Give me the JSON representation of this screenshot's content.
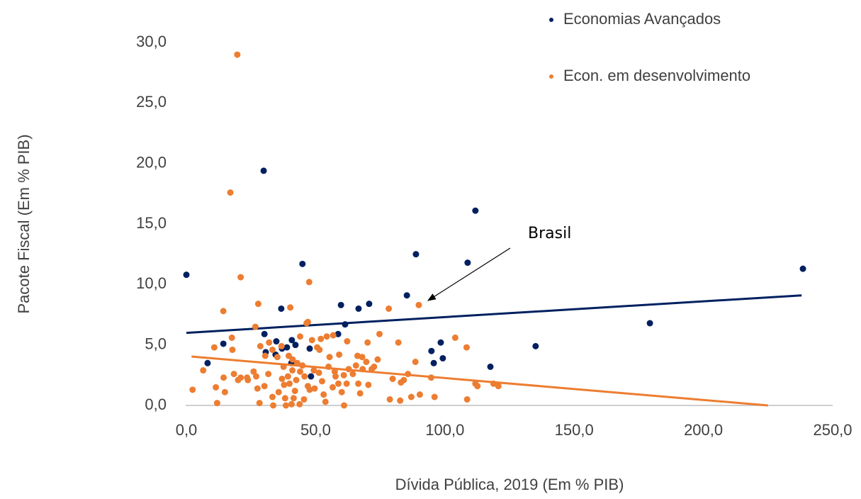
{
  "chart_data": {
    "type": "scatter",
    "x_label": "Dívida Pública, 2019 (Em % PIB)",
    "y_label": "Pacote Fiscal (Em % PIB)",
    "xlim": [
      0,
      250
    ],
    "ylim": [
      0,
      30
    ],
    "xticks": [
      {
        "value": 0,
        "label": "0,0"
      },
      {
        "value": 50,
        "label": "50,0"
      },
      {
        "value": 100,
        "label": "100,0"
      },
      {
        "value": 150,
        "label": "150,0"
      },
      {
        "value": 200,
        "label": "200,0"
      },
      {
        "value": 250,
        "label": "250,0"
      }
    ],
    "yticks": [
      {
        "value": 0,
        "label": "0,0"
      },
      {
        "value": 5,
        "label": "5,0"
      },
      {
        "value": 10,
        "label": "10,0"
      },
      {
        "value": 15,
        "label": "15,0"
      },
      {
        "value": 20,
        "label": "20,0"
      },
      {
        "value": 25,
        "label": "25,0"
      },
      {
        "value": 30,
        "label": "30,0"
      }
    ],
    "legend": "upper right",
    "annotation": "Brasil",
    "series": [
      {
        "name": "Economias Avançados",
        "color": "#002060",
        "x": [
          0,
          8.2,
          14.3,
          29.9,
          30.2,
          30.7,
          34.5,
          34.8,
          37.0,
          36.7,
          38.9,
          40.6,
          40.8,
          42.2,
          44.9,
          47.7,
          48.2,
          58.7,
          59.8,
          61.4,
          66.6,
          70.7,
          85.3,
          88.8,
          94.8,
          95.7,
          98.4,
          99.2,
          108.8,
          111.8,
          117.6,
          135.1,
          179.3,
          238.5
        ],
        "y": [
          10.8,
          3.5,
          5.1,
          19.4,
          5.9,
          4.4,
          4.2,
          5.3,
          4.7,
          8.0,
          4.8,
          3.5,
          5.4,
          5.0,
          11.7,
          4.7,
          2.4,
          5.9,
          8.3,
          6.7,
          8.0,
          8.4,
          9.1,
          12.5,
          4.5,
          3.5,
          5.2,
          3.9,
          11.8,
          16.1,
          3.2,
          4.9,
          6.8,
          11.3
        ],
        "trendline": {
          "x": [
            0,
            238
          ],
          "y": [
            6.0,
            9.1
          ]
        }
      },
      {
        "name": "Econ. em desenvolvimento",
        "color": "#ED7D31",
        "x": [
          19.7,
          17.0,
          21.0,
          47.5,
          27.8,
          14.3,
          40.2,
          89.9,
          78.3,
          26.7,
          17.6,
          17.8,
          46.5,
          47.0,
          74.7,
          82.0,
          104,
          108.4,
          70.1,
          68,
          66.2,
          54.3,
          56.8,
          59.1,
          62.2,
          50.6,
          52,
          44,
          39.6,
          41,
          37.6,
          32,
          28.6,
          30.5,
          26,
          27,
          23.5,
          20,
          10.8,
          6.5,
          2.4,
          11.4,
          11.9,
          14.9,
          14.4,
          18.4,
          27.5,
          28.3,
          30.2,
          31.7,
          33.3,
          33.6,
          35.7,
          37.0,
          37.8,
          38.2,
          38.5,
          39.3,
          39.9,
          40.7,
          41.5,
          42.0,
          42.5,
          43.8,
          44.9,
          45.5,
          47.0,
          47.7,
          49.3,
          49.6,
          51.3,
          52.5,
          53.1,
          53.8,
          55.0,
          56.6,
          57.4,
          58.8,
          60.1,
          61.0,
          62.0,
          62.8,
          64.4,
          65.6,
          66.5,
          67.2,
          68.2,
          69.6,
          70.4,
          71.7,
          72.6,
          74.0,
          78.7,
          79.8,
          82.7,
          83.0,
          84.1,
          85.7,
          87.0,
          88.6,
          90.3,
          94.7,
          96.0,
          108.6,
          111.8,
          112.6,
          118.8,
          120.7,
          23.8,
          21.0,
          45.7,
          48.6,
          51.5,
          33.3,
          35.2,
          36.8,
          41.1,
          42.9,
          44.0,
          55.4,
          60.9,
          57.7
        ],
        "y": [
          29.0,
          17.6,
          10.6,
          10.2,
          8.4,
          7.8,
          8.1,
          8.3,
          8.0,
          6.5,
          5.6,
          4.6,
          6.8,
          6.9,
          5.9,
          5.2,
          5.6,
          4.8,
          5.2,
          4.0,
          4.1,
          5.7,
          5.8,
          4.2,
          5.3,
          4.8,
          5.5,
          5.7,
          4.1,
          2.9,
          3.2,
          5.2,
          4.9,
          4.1,
          2.8,
          2.4,
          2.3,
          2.1,
          4.8,
          2.9,
          1.3,
          1.5,
          0.2,
          1.1,
          2.3,
          2.6,
          1.4,
          0.2,
          1.6,
          2.6,
          0.7,
          0.0,
          1.1,
          2.2,
          1.7,
          0.6,
          0.0,
          2.4,
          1.8,
          0.1,
          0.6,
          1.2,
          2.1,
          0.1,
          3.3,
          0.5,
          1.6,
          1.3,
          2.9,
          1.4,
          2.7,
          2.0,
          0.9,
          0.3,
          3.2,
          1.5,
          2.8,
          1.8,
          1.1,
          0.0,
          1.8,
          3.0,
          2.6,
          3.3,
          1.8,
          1.0,
          3.0,
          3.6,
          1.7,
          3.0,
          3.2,
          3.8,
          0.5,
          2.2,
          0.4,
          1.9,
          2.1,
          2.6,
          0.7,
          3.6,
          0.9,
          2.3,
          0.7,
          0.5,
          1.8,
          1.6,
          1.8,
          1.6,
          2.1,
          2.3,
          2.4,
          5.4,
          4.6,
          4.6,
          4.0,
          4.9,
          3.8,
          3.5,
          2.8,
          4.0,
          2.5,
          2.4
        ],
        "trendline": {
          "x": [
            2,
            225
          ],
          "y": [
            4.04,
            0
          ]
        }
      }
    ]
  }
}
